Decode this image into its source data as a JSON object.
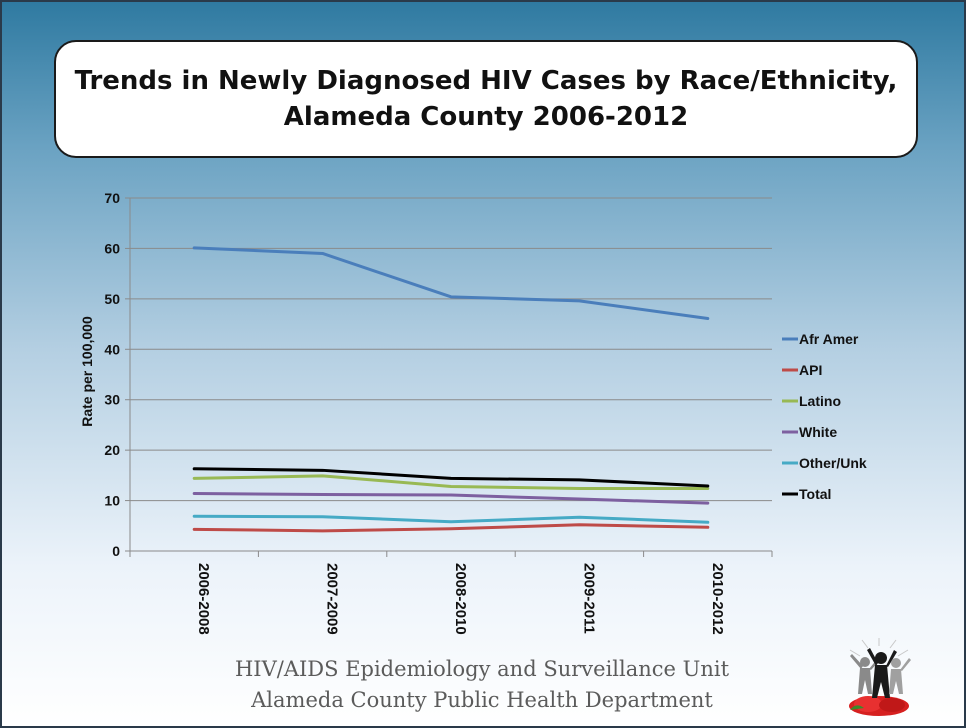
{
  "title": {
    "line1": "Trends in Newly Diagnosed HIV Cases by Race/Ethnicity,",
    "line2": "Alameda County 2006-2012"
  },
  "footer": {
    "line1": "HIV/AIDS Epidemiology and Surveillance Unit",
    "line2": "Alameda County Public Health Department"
  },
  "logo": {
    "icon": "people-celebrating-logo"
  },
  "chart_data": {
    "type": "line",
    "title": "Trends in Newly Diagnosed HIV Cases by Race/Ethnicity, Alameda County 2006-2012",
    "xlabel": "",
    "ylabel": "Rate per 100,000",
    "ylim": [
      0,
      70
    ],
    "yticks": [
      0,
      10,
      20,
      30,
      40,
      50,
      60,
      70
    ],
    "grid": true,
    "legend_position": "right",
    "categories": [
      "2006-2008",
      "2007-2009",
      "2008-2010",
      "2009-2011",
      "2010-2012"
    ],
    "series": [
      {
        "name": "Afr Amer",
        "color": "#4a7ebb",
        "values": [
          60.1,
          59.0,
          50.4,
          49.6,
          46.1
        ]
      },
      {
        "name": "API",
        "color": "#be4b48",
        "values": [
          4.3,
          4.0,
          4.4,
          5.2,
          4.7
        ]
      },
      {
        "name": "Latino",
        "color": "#98b954",
        "values": [
          14.4,
          14.9,
          12.8,
          12.4,
          12.4
        ]
      },
      {
        "name": "White",
        "color": "#7d60a0",
        "values": [
          11.4,
          11.2,
          11.1,
          10.3,
          9.5
        ]
      },
      {
        "name": "Other/Unk",
        "color": "#46aac5",
        "values": [
          6.9,
          6.8,
          5.8,
          6.7,
          5.7
        ]
      },
      {
        "name": "Total",
        "color": "#000000",
        "values": [
          16.3,
          16.0,
          14.4,
          14.1,
          12.9
        ]
      }
    ]
  }
}
